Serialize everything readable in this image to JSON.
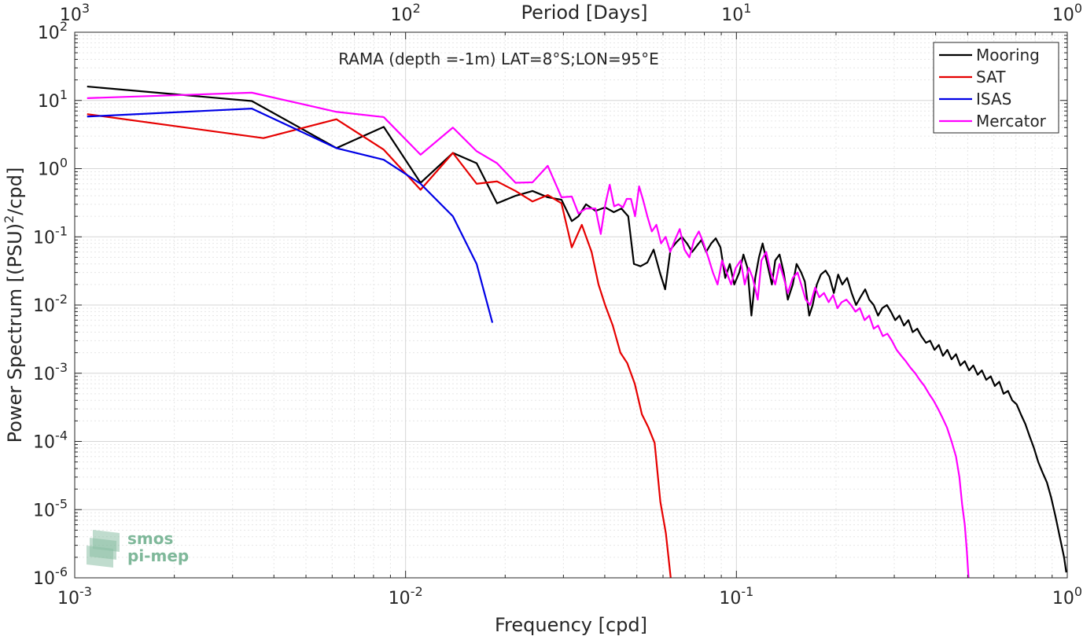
{
  "chart_data": {
    "type": "line",
    "title": "RAMA (depth =-1m) LAT=8°S;LON=95°E",
    "xlabel": "Frequency [cpd]",
    "ylabel": "Power Spectrum [(PSU)",
    "ylabel_sup": "2",
    "ylabel_tail": "/cpd]",
    "top_xlabel": "Period [Days]",
    "x_scale": "log",
    "y_scale": "log",
    "xlim": [
      0.001,
      1
    ],
    "ylim": [
      1e-06,
      100
    ],
    "grid": true,
    "legend_position": "top-right",
    "x_ticks": [
      {
        "value": 0.001,
        "base": "10",
        "exp": "-3"
      },
      {
        "value": 0.01,
        "base": "10",
        "exp": "-2"
      },
      {
        "value": 0.1,
        "base": "10",
        "exp": "-1"
      },
      {
        "value": 1,
        "base": "10",
        "exp": "0"
      }
    ],
    "y_ticks": [
      {
        "value": 100,
        "base": "10",
        "exp": "2"
      },
      {
        "value": 10,
        "base": "10",
        "exp": "1"
      },
      {
        "value": 1,
        "base": "10",
        "exp": "0"
      },
      {
        "value": 0.1,
        "base": "10",
        "exp": "-1"
      },
      {
        "value": 0.01,
        "base": "10",
        "exp": "-2"
      },
      {
        "value": 0.001,
        "base": "10",
        "exp": "-3"
      },
      {
        "value": 0.0001,
        "base": "10",
        "exp": "-4"
      },
      {
        "value": 1e-05,
        "base": "10",
        "exp": "-5"
      },
      {
        "value": 1e-06,
        "base": "10",
        "exp": "-6"
      }
    ],
    "top_ticks": [
      {
        "value": 0.001,
        "base": "10",
        "exp": "3"
      },
      {
        "value": 0.01,
        "base": "10",
        "exp": "2"
      },
      {
        "value": 0.1,
        "base": "10",
        "exp": "1"
      },
      {
        "value": 1,
        "base": "10",
        "exp": "0"
      }
    ],
    "series": [
      {
        "name": "Mooring",
        "color": "#000000",
        "points": [
          [
            0.00109,
            16.0
          ],
          [
            0.00343,
            9.8
          ],
          [
            0.00618,
            2.0
          ],
          [
            0.00859,
            4.1
          ],
          [
            0.0111,
            0.62
          ],
          [
            0.0139,
            1.7
          ],
          [
            0.0164,
            1.2
          ],
          [
            0.0189,
            0.31
          ],
          [
            0.0215,
            0.4
          ],
          [
            0.0242,
            0.47
          ],
          [
            0.0269,
            0.38
          ],
          [
            0.0296,
            0.35
          ],
          [
            0.0318,
            0.17
          ],
          [
            0.0333,
            0.2
          ],
          [
            0.0351,
            0.3
          ],
          [
            0.0375,
            0.24
          ],
          [
            0.0401,
            0.27
          ],
          [
            0.0426,
            0.23
          ],
          [
            0.0449,
            0.26
          ],
          [
            0.0471,
            0.2
          ],
          [
            0.049,
            0.04
          ],
          [
            0.0513,
            0.037
          ],
          [
            0.0538,
            0.042
          ],
          [
            0.0562,
            0.065
          ],
          [
            0.0587,
            0.03
          ],
          [
            0.0609,
            0.017
          ],
          [
            0.0632,
            0.065
          ],
          [
            0.0658,
            0.083
          ],
          [
            0.0684,
            0.1
          ],
          [
            0.0709,
            0.08
          ],
          [
            0.0735,
            0.06
          ],
          [
            0.0761,
            0.075
          ],
          [
            0.0784,
            0.09
          ],
          [
            0.081,
            0.06
          ],
          [
            0.0839,
            0.08
          ],
          [
            0.0866,
            0.095
          ],
          [
            0.0895,
            0.07
          ],
          [
            0.0925,
            0.025
          ],
          [
            0.0955,
            0.04
          ],
          [
            0.0985,
            0.02
          ],
          [
            0.102,
            0.03
          ],
          [
            0.105,
            0.055
          ],
          [
            0.108,
            0.035
          ],
          [
            0.111,
            0.007
          ],
          [
            0.114,
            0.025
          ],
          [
            0.117,
            0.05
          ],
          [
            0.12,
            0.08
          ],
          [
            0.124,
            0.04
          ],
          [
            0.128,
            0.02
          ],
          [
            0.131,
            0.045
          ],
          [
            0.135,
            0.055
          ],
          [
            0.139,
            0.03
          ],
          [
            0.143,
            0.012
          ],
          [
            0.148,
            0.02
          ],
          [
            0.152,
            0.04
          ],
          [
            0.157,
            0.03
          ],
          [
            0.161,
            0.022
          ],
          [
            0.166,
            0.007
          ],
          [
            0.17,
            0.01
          ],
          [
            0.175,
            0.02
          ],
          [
            0.18,
            0.028
          ],
          [
            0.186,
            0.032
          ],
          [
            0.191,
            0.026
          ],
          [
            0.197,
            0.015
          ],
          [
            0.203,
            0.028
          ],
          [
            0.209,
            0.02
          ],
          [
            0.216,
            0.025
          ],
          [
            0.223,
            0.015
          ],
          [
            0.23,
            0.01
          ],
          [
            0.237,
            0.013
          ],
          [
            0.245,
            0.017
          ],
          [
            0.252,
            0.012
          ],
          [
            0.26,
            0.01
          ],
          [
            0.268,
            0.007
          ],
          [
            0.276,
            0.009
          ],
          [
            0.285,
            0.01
          ],
          [
            0.293,
            0.008
          ],
          [
            0.302,
            0.006
          ],
          [
            0.311,
            0.007
          ],
          [
            0.321,
            0.005
          ],
          [
            0.331,
            0.006
          ],
          [
            0.341,
            0.004
          ],
          [
            0.352,
            0.0045
          ],
          [
            0.362,
            0.0035
          ],
          [
            0.374,
            0.0028
          ],
          [
            0.385,
            0.003
          ],
          [
            0.397,
            0.0022
          ],
          [
            0.409,
            0.0026
          ],
          [
            0.421,
            0.0018
          ],
          [
            0.434,
            0.0022
          ],
          [
            0.447,
            0.0016
          ],
          [
            0.461,
            0.0019
          ],
          [
            0.475,
            0.0013
          ],
          [
            0.49,
            0.0015
          ],
          [
            0.505,
            0.0011
          ],
          [
            0.52,
            0.0013
          ],
          [
            0.536,
            0.00095
          ],
          [
            0.552,
            0.0011
          ],
          [
            0.569,
            0.0008
          ],
          [
            0.587,
            0.0009
          ],
          [
            0.604,
            0.00065
          ],
          [
            0.623,
            0.00075
          ],
          [
            0.642,
            0.0005
          ],
          [
            0.662,
            0.00055
          ],
          [
            0.682,
            0.0004
          ],
          [
            0.703,
            0.00035
          ],
          [
            0.724,
            0.00025
          ],
          [
            0.747,
            0.00018
          ],
          [
            0.769,
            0.00012
          ],
          [
            0.793,
            8e-05
          ],
          [
            0.817,
            5e-05
          ],
          [
            0.842,
            3.5e-05
          ],
          [
            0.868,
            2.5e-05
          ],
          [
            0.894,
            1.5e-05
          ],
          [
            0.921,
            8e-06
          ],
          [
            0.949,
            4e-06
          ],
          [
            0.978,
            2e-06
          ],
          [
            0.993,
            1.2e-06
          ]
        ]
      },
      {
        "name": "SAT",
        "color": "#e60000",
        "points": [
          [
            0.00109,
            6.3
          ],
          [
            0.00372,
            2.8
          ],
          [
            0.00618,
            5.3
          ],
          [
            0.00859,
            1.9
          ],
          [
            0.0111,
            0.49
          ],
          [
            0.0139,
            1.7
          ],
          [
            0.0164,
            0.6
          ],
          [
            0.0189,
            0.65
          ],
          [
            0.0215,
            0.47
          ],
          [
            0.0242,
            0.33
          ],
          [
            0.0269,
            0.41
          ],
          [
            0.0296,
            0.31
          ],
          [
            0.0318,
            0.07
          ],
          [
            0.0341,
            0.15
          ],
          [
            0.0365,
            0.06
          ],
          [
            0.0383,
            0.02
          ],
          [
            0.0401,
            0.01
          ],
          [
            0.0423,
            0.005
          ],
          [
            0.0446,
            0.002
          ],
          [
            0.0468,
            0.0014
          ],
          [
            0.0493,
            0.0007
          ],
          [
            0.0518,
            0.00025
          ],
          [
            0.0542,
            0.00016
          ],
          [
            0.0566,
            9.5e-05
          ],
          [
            0.0589,
            1.3e-05
          ],
          [
            0.0612,
            4.5e-06
          ],
          [
            0.0633,
            1e-06
          ]
        ]
      },
      {
        "name": "ISAS",
        "color": "#0000e6",
        "points": [
          [
            0.00109,
            5.8
          ],
          [
            0.00343,
            7.6
          ],
          [
            0.00618,
            2.0
          ],
          [
            0.00859,
            1.35
          ],
          [
            0.0111,
            0.6
          ],
          [
            0.0139,
            0.2
          ],
          [
            0.0164,
            0.04
          ],
          [
            0.0183,
            0.0055
          ]
        ]
      },
      {
        "name": "Mercator",
        "color": "#ff00ff",
        "points": [
          [
            0.00109,
            10.8
          ],
          [
            0.00343,
            13.0
          ],
          [
            0.00618,
            6.8
          ],
          [
            0.00859,
            5.7
          ],
          [
            0.0111,
            1.6
          ],
          [
            0.0139,
            4.0
          ],
          [
            0.0164,
            1.8
          ],
          [
            0.0189,
            1.2
          ],
          [
            0.0215,
            0.62
          ],
          [
            0.0242,
            0.63
          ],
          [
            0.0269,
            1.1
          ],
          [
            0.0296,
            0.38
          ],
          [
            0.0318,
            0.39
          ],
          [
            0.0333,
            0.22
          ],
          [
            0.0351,
            0.26
          ],
          [
            0.0375,
            0.26
          ],
          [
            0.0389,
            0.11
          ],
          [
            0.0401,
            0.29
          ],
          [
            0.0414,
            0.58
          ],
          [
            0.0427,
            0.28
          ],
          [
            0.044,
            0.3
          ],
          [
            0.0454,
            0.27
          ],
          [
            0.0466,
            0.36
          ],
          [
            0.048,
            0.36
          ],
          [
            0.0494,
            0.2
          ],
          [
            0.0508,
            0.55
          ],
          [
            0.0522,
            0.35
          ],
          [
            0.0538,
            0.2
          ],
          [
            0.0555,
            0.12
          ],
          [
            0.0573,
            0.15
          ],
          [
            0.0592,
            0.08
          ],
          [
            0.0611,
            0.1
          ],
          [
            0.0631,
            0.06
          ],
          [
            0.0652,
            0.09
          ],
          [
            0.0674,
            0.13
          ],
          [
            0.0697,
            0.065
          ],
          [
            0.0721,
            0.05
          ],
          [
            0.0745,
            0.09
          ],
          [
            0.077,
            0.12
          ],
          [
            0.0796,
            0.08
          ],
          [
            0.0822,
            0.05
          ],
          [
            0.0849,
            0.03
          ],
          [
            0.0877,
            0.02
          ],
          [
            0.0905,
            0.045
          ],
          [
            0.0934,
            0.03
          ],
          [
            0.0964,
            0.02
          ],
          [
            0.0995,
            0.035
          ],
          [
            0.103,
            0.045
          ],
          [
            0.106,
            0.02
          ],
          [
            0.109,
            0.035
          ],
          [
            0.112,
            0.025
          ],
          [
            0.116,
            0.012
          ],
          [
            0.119,
            0.045
          ],
          [
            0.123,
            0.06
          ],
          [
            0.127,
            0.03
          ],
          [
            0.131,
            0.02
          ],
          [
            0.135,
            0.04
          ],
          [
            0.139,
            0.025
          ],
          [
            0.143,
            0.015
          ],
          [
            0.148,
            0.025
          ],
          [
            0.153,
            0.03
          ],
          [
            0.157,
            0.02
          ],
          [
            0.162,
            0.012
          ],
          [
            0.167,
            0.01
          ],
          [
            0.173,
            0.018
          ],
          [
            0.178,
            0.013
          ],
          [
            0.184,
            0.015
          ],
          [
            0.19,
            0.011
          ],
          [
            0.196,
            0.014
          ],
          [
            0.202,
            0.009
          ],
          [
            0.208,
            0.011
          ],
          [
            0.215,
            0.012
          ],
          [
            0.222,
            0.01
          ],
          [
            0.229,
            0.008
          ],
          [
            0.236,
            0.009
          ],
          [
            0.244,
            0.006
          ],
          [
            0.252,
            0.007
          ],
          [
            0.26,
            0.0045
          ],
          [
            0.268,
            0.005
          ],
          [
            0.277,
            0.0035
          ],
          [
            0.286,
            0.0038
          ],
          [
            0.295,
            0.003
          ],
          [
            0.305,
            0.0022
          ],
          [
            0.315,
            0.0018
          ],
          [
            0.325,
            0.0015
          ],
          [
            0.336,
            0.0012
          ],
          [
            0.347,
            0.001
          ],
          [
            0.358,
            0.0008
          ],
          [
            0.37,
            0.00065
          ],
          [
            0.382,
            0.0005
          ],
          [
            0.394,
            0.0004
          ],
          [
            0.407,
            0.0003
          ],
          [
            0.42,
            0.00022
          ],
          [
            0.433,
            0.00016
          ],
          [
            0.447,
            0.0001
          ],
          [
            0.461,
            6e-05
          ],
          [
            0.472,
            3e-05
          ],
          [
            0.481,
            1.2e-05
          ],
          [
            0.49,
            6e-06
          ],
          [
            0.497,
            2.5e-06
          ],
          [
            0.503,
            1e-06
          ]
        ]
      }
    ]
  },
  "logo": {
    "line1": "smos",
    "line2": "pi-mep",
    "color": "#7fb89a"
  }
}
